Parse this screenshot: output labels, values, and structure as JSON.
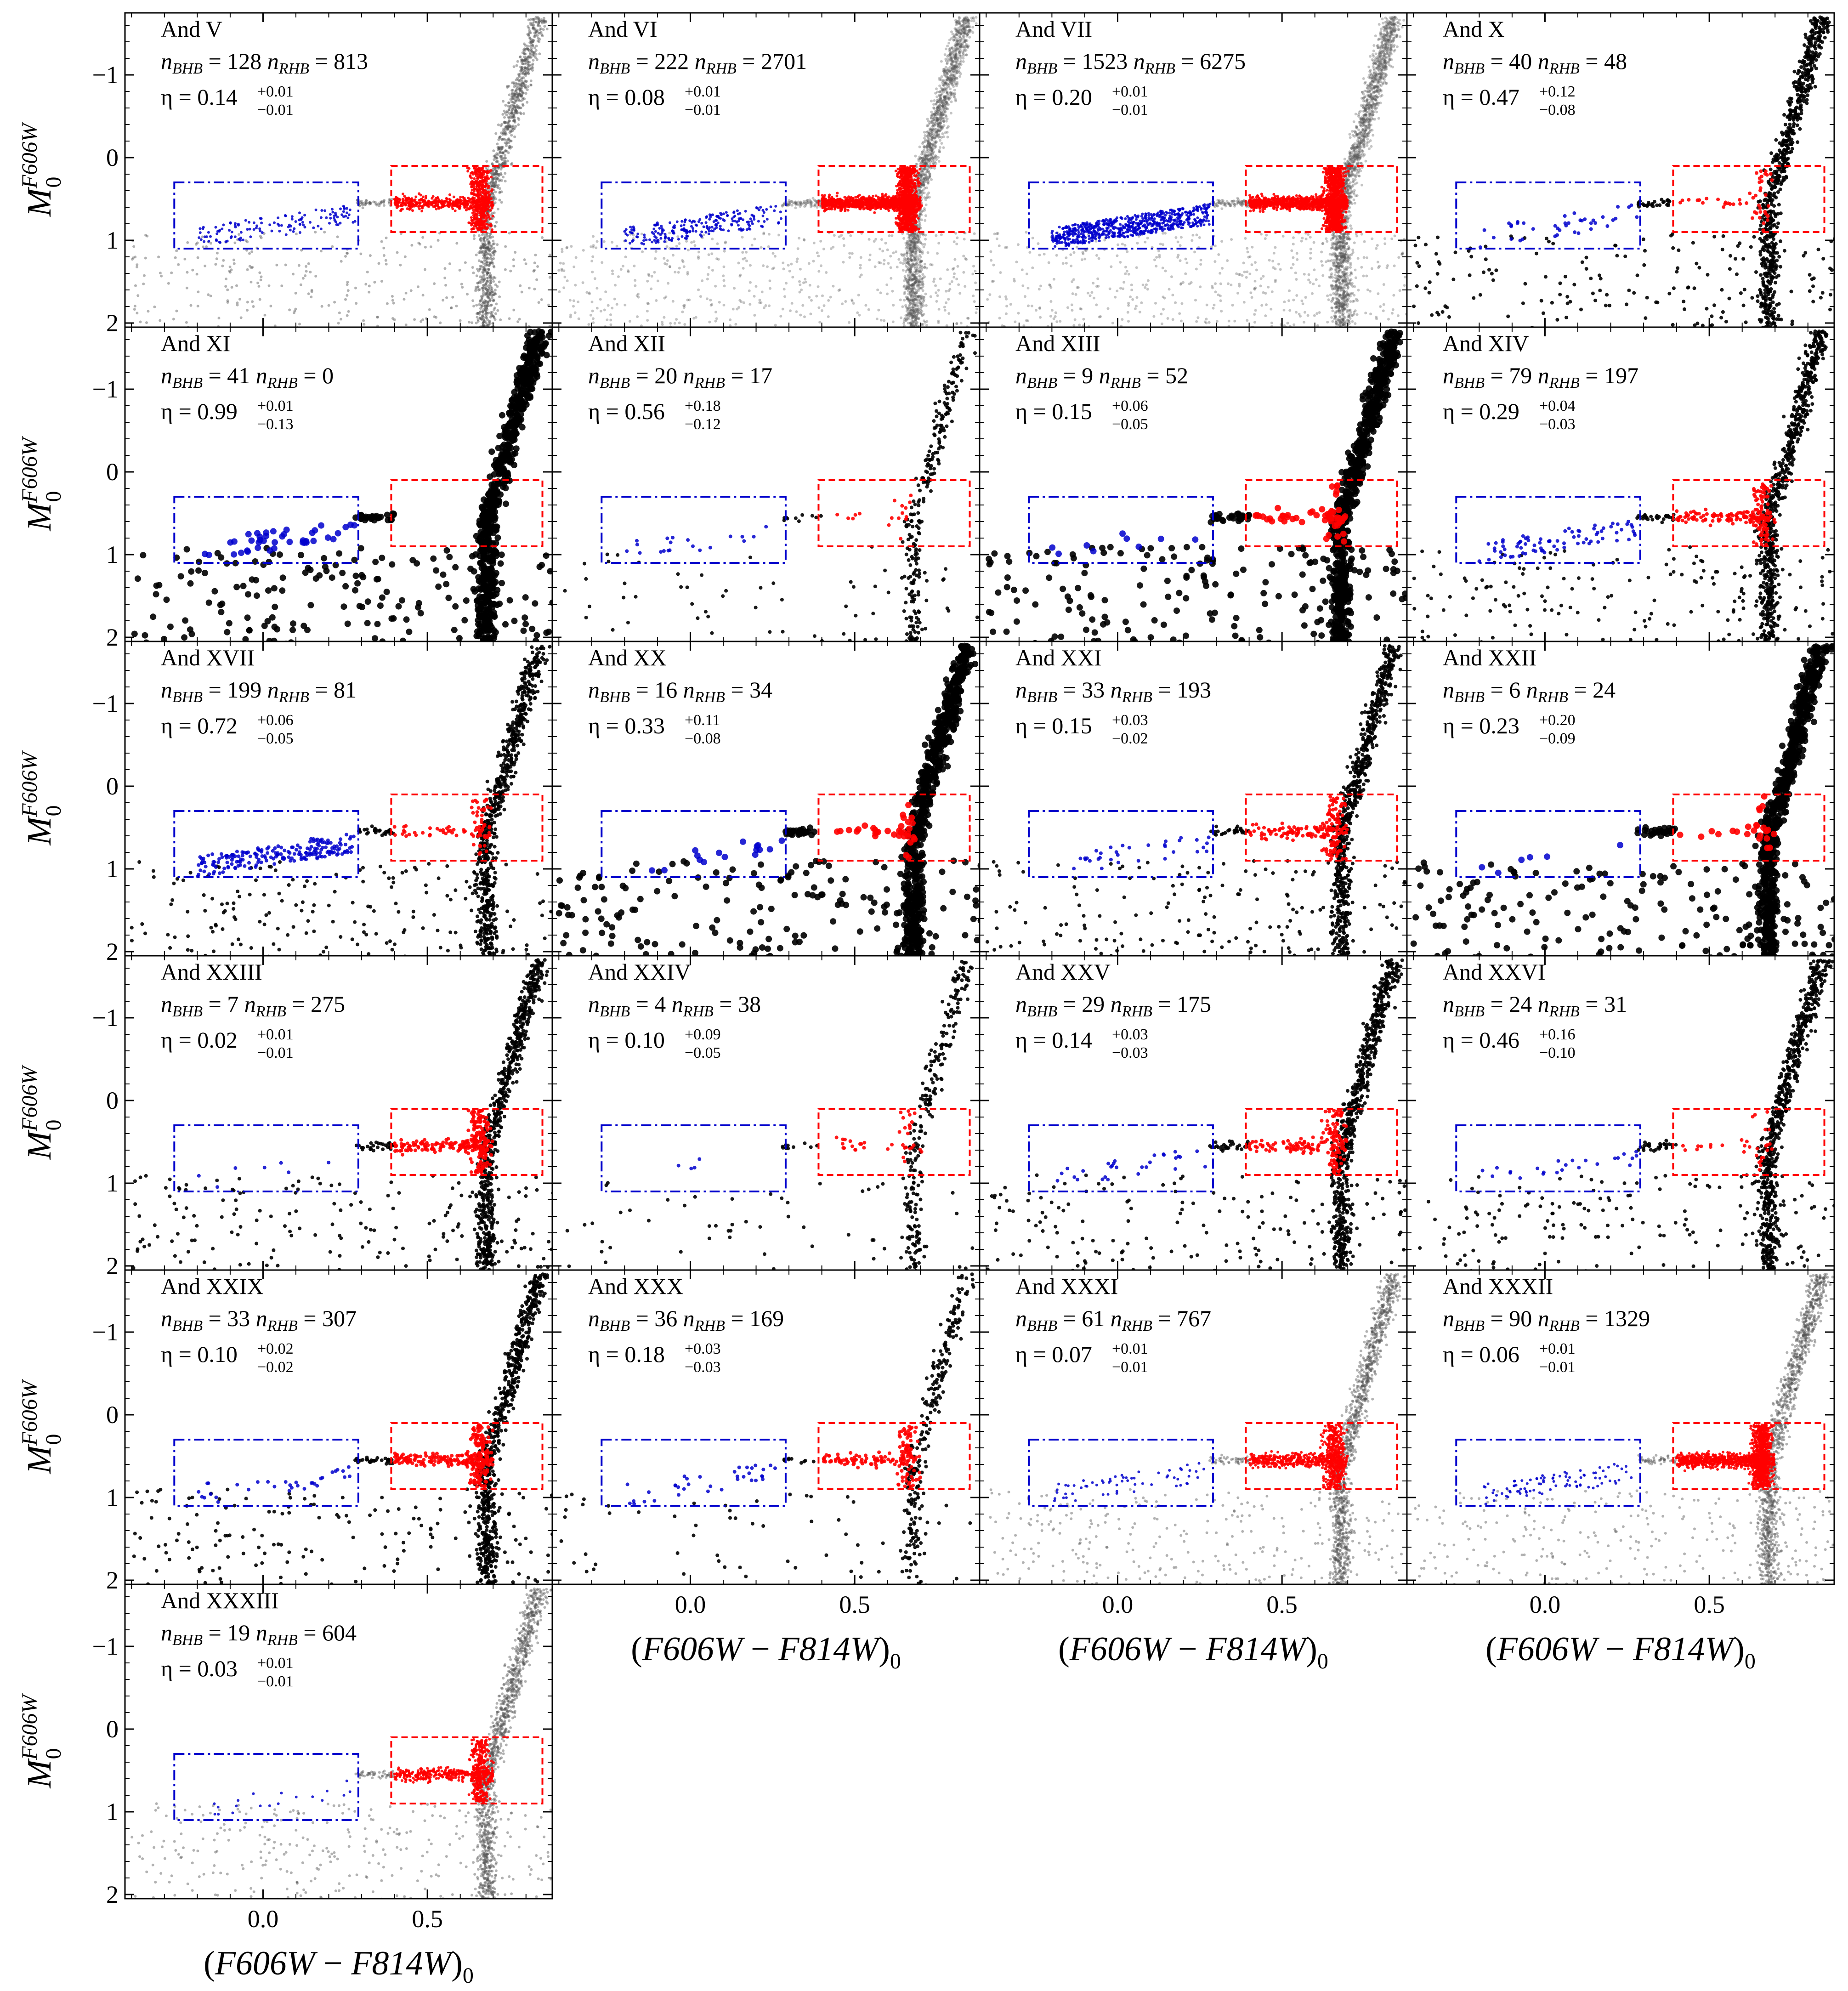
{
  "chart_data": {
    "type": "scatter",
    "title": "",
    "xlabel_parts": {
      "open": "(",
      "name": "F606W",
      "minus": "−",
      "name2": "F814W",
      "close": ")",
      "sub": "0"
    },
    "ylabel_parts": {
      "main": "M",
      "sub": "0",
      "sup": "F606W"
    },
    "xlim": [
      -0.42,
      0.88
    ],
    "ylim": [
      2.05,
      -1.75
    ],
    "xticks": [
      {
        "v": 0.0,
        "label": "0.0"
      },
      {
        "v": 0.5,
        "label": "0.5"
      }
    ],
    "yticks": [
      {
        "v": -1,
        "label": "−1"
      },
      {
        "v": 0,
        "label": "0"
      },
      {
        "v": 1,
        "label": "1"
      },
      {
        "v": 2,
        "label": "2"
      }
    ],
    "bhb_box": {
      "x": [
        -0.27,
        0.29
      ],
      "y": [
        0.3,
        1.1
      ],
      "color": "#0000cc"
    },
    "rhb_box": {
      "x": [
        0.39,
        0.85
      ],
      "y": [
        0.1,
        0.9
      ],
      "color": "#ff0000"
    },
    "labels": {
      "nbhb": "n",
      "bhb_sub": "BHB",
      "nrhb": "n",
      "rhb_sub": "RHB",
      "eq": "=",
      "eta": "η"
    },
    "panels": [
      {
        "name": "And V",
        "n_bhb": 128,
        "n_rhb": 813,
        "eta": "0.14",
        "eta_up": "+0.01",
        "eta_lo": "−0.01"
      },
      {
        "name": "And VI",
        "n_bhb": 222,
        "n_rhb": 2701,
        "eta": "0.08",
        "eta_up": "+0.01",
        "eta_lo": "−0.01"
      },
      {
        "name": "And VII",
        "n_bhb": 1523,
        "n_rhb": 6275,
        "eta": "0.20",
        "eta_up": "+0.01",
        "eta_lo": "−0.01"
      },
      {
        "name": "And X",
        "n_bhb": 40,
        "n_rhb": 48,
        "eta": "0.47",
        "eta_up": "+0.12",
        "eta_lo": "−0.08"
      },
      {
        "name": "And XI",
        "n_bhb": 41,
        "n_rhb": 0,
        "eta": "0.99",
        "eta_up": "+0.01",
        "eta_lo": "−0.13"
      },
      {
        "name": "And XII",
        "n_bhb": 20,
        "n_rhb": 17,
        "eta": "0.56",
        "eta_up": "+0.18",
        "eta_lo": "−0.12"
      },
      {
        "name": "And XIII",
        "n_bhb": 9,
        "n_rhb": 52,
        "eta": "0.15",
        "eta_up": "+0.06",
        "eta_lo": "−0.05"
      },
      {
        "name": "And XIV",
        "n_bhb": 79,
        "n_rhb": 197,
        "eta": "0.29",
        "eta_up": "+0.04",
        "eta_lo": "−0.03"
      },
      {
        "name": "And XVII",
        "n_bhb": 199,
        "n_rhb": 81,
        "eta": "0.72",
        "eta_up": "+0.06",
        "eta_lo": "−0.05"
      },
      {
        "name": "And XX",
        "n_bhb": 16,
        "n_rhb": 34,
        "eta": "0.33",
        "eta_up": "+0.11",
        "eta_lo": "−0.08"
      },
      {
        "name": "And XXI",
        "n_bhb": 33,
        "n_rhb": 193,
        "eta": "0.15",
        "eta_up": "+0.03",
        "eta_lo": "−0.02"
      },
      {
        "name": "And XXII",
        "n_bhb": 6,
        "n_rhb": 24,
        "eta": "0.23",
        "eta_up": "+0.20",
        "eta_lo": "−0.09"
      },
      {
        "name": "And XXIII",
        "n_bhb": 7,
        "n_rhb": 275,
        "eta": "0.02",
        "eta_up": "+0.01",
        "eta_lo": "−0.01"
      },
      {
        "name": "And XXIV",
        "n_bhb": 4,
        "n_rhb": 38,
        "eta": "0.10",
        "eta_up": "+0.09",
        "eta_lo": "−0.05"
      },
      {
        "name": "And XXV",
        "n_bhb": 29,
        "n_rhb": 175,
        "eta": "0.14",
        "eta_up": "+0.03",
        "eta_lo": "−0.03"
      },
      {
        "name": "And XXVI",
        "n_bhb": 24,
        "n_rhb": 31,
        "eta": "0.46",
        "eta_up": "+0.16",
        "eta_lo": "−0.10"
      },
      {
        "name": "And XXIX",
        "n_bhb": 33,
        "n_rhb": 307,
        "eta": "0.10",
        "eta_up": "+0.02",
        "eta_lo": "−0.02"
      },
      {
        "name": "And XXX",
        "n_bhb": 36,
        "n_rhb": 169,
        "eta": "0.18",
        "eta_up": "+0.03",
        "eta_lo": "−0.03"
      },
      {
        "name": "And XXXI",
        "n_bhb": 61,
        "n_rhb": 767,
        "eta": "0.07",
        "eta_up": "+0.01",
        "eta_lo": "−0.01"
      },
      {
        "name": "And XXXII",
        "n_bhb": 90,
        "n_rhb": 1329,
        "eta": "0.06",
        "eta_up": "+0.01",
        "eta_lo": "−0.01"
      },
      {
        "name": "And XXXIII",
        "n_bhb": 19,
        "n_rhb": 604,
        "eta": "0.03",
        "eta_up": "+0.01",
        "eta_lo": "−0.01"
      }
    ],
    "series": [
      {
        "name": "BHB stars",
        "color": "#0000cc"
      },
      {
        "name": "RHB stars",
        "color": "#ff0000"
      },
      {
        "name": "other stars",
        "color": "#000000"
      }
    ]
  }
}
